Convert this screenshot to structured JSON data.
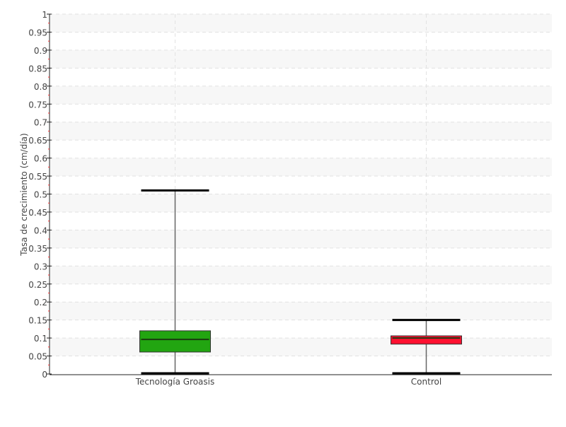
{
  "chart_data": {
    "type": "box",
    "ylabel": "Tasa de crecimiento (cm/día)",
    "xlabel": "",
    "ylim": [
      0,
      1
    ],
    "ytick_step": 0.05,
    "yticks": [
      "0",
      "0.05",
      "0.1",
      "0.15",
      "0.2",
      "0.25",
      "0.3",
      "0.35",
      "0.4",
      "0.45",
      "0.5",
      "0.55",
      "0.6",
      "0.65",
      "0.7",
      "0.75",
      "0.8",
      "0.85",
      "0.9",
      "0.95",
      "1"
    ],
    "grid": true,
    "categories": [
      "Tecnología Groasis",
      "Control"
    ],
    "series": [
      {
        "category": "Tecnología Groasis",
        "min": 0.0,
        "q1": 0.061,
        "median": 0.096,
        "q3": 0.12,
        "max": 0.51,
        "color": "#22a511"
      },
      {
        "category": "Control",
        "min": 0.0,
        "q1": 0.083,
        "median": 0.1,
        "q3": 0.106,
        "max": 0.15,
        "color": "#ff1030"
      }
    ]
  }
}
